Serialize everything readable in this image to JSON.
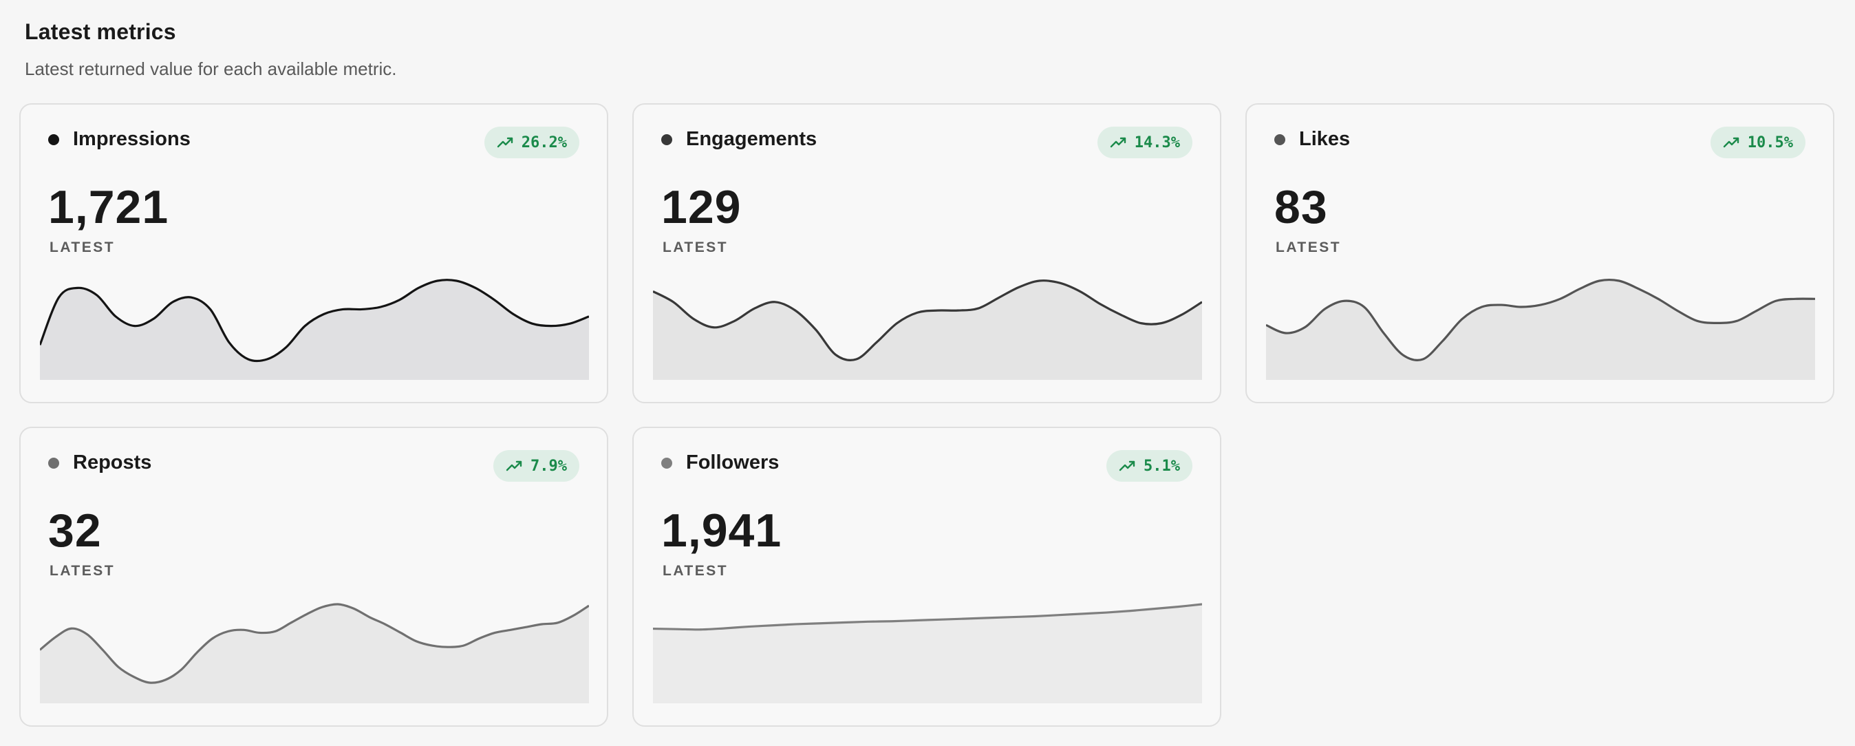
{
  "header": {
    "title": "Latest metrics",
    "subtitle": "Latest returned value for each available metric."
  },
  "metrics": [
    {
      "name": "Impressions",
      "value": "1,721",
      "caption": "LATEST",
      "change": "26.2%",
      "color": "#141414",
      "fill": "#e0e0e2",
      "series": [
        49,
        69,
        73,
        70,
        61,
        57,
        60,
        67,
        69,
        64,
        50,
        43,
        43,
        48,
        57,
        62,
        64,
        64,
        65,
        68,
        73,
        76,
        76,
        73,
        68,
        62,
        58,
        57,
        58,
        61
      ]
    },
    {
      "name": "Engagements",
      "value": "129",
      "caption": "LATEST",
      "change": "14.3%",
      "color": "#383838",
      "fill": "#e4e4e4",
      "series": [
        63,
        58,
        50,
        46,
        49,
        55,
        58,
        54,
        45,
        33,
        31,
        39,
        48,
        53,
        54,
        54,
        55,
        60,
        65,
        68,
        67,
        63,
        57,
        52,
        48,
        48,
        52,
        58
      ]
    },
    {
      "name": "Likes",
      "value": "83",
      "caption": "LATEST",
      "change": "10.5%",
      "color": "#555555",
      "fill": "#e5e5e5",
      "series": [
        48,
        44,
        47,
        56,
        60,
        57,
        44,
        33,
        31,
        40,
        51,
        57,
        58,
        57,
        58,
        61,
        66,
        70,
        70,
        66,
        61,
        55,
        50,
        49,
        50,
        55,
        60,
        61,
        61
      ]
    },
    {
      "name": "Reposts",
      "value": "32",
      "caption": "LATEST",
      "change": "7.9%",
      "color": "#707070",
      "fill": "#e8e8e8",
      "series": [
        61,
        70,
        76,
        72,
        61,
        49,
        42,
        38,
        40,
        47,
        59,
        69,
        74,
        75,
        73,
        74,
        80,
        86,
        91,
        93,
        90,
        84,
        79,
        73,
        67,
        64,
        63,
        64,
        69,
        73,
        75,
        77,
        79,
        80,
        85,
        92
      ]
    },
    {
      "name": "Followers",
      "value": "1,941",
      "caption": "LATEST",
      "change": "5.1%",
      "color": "#7f7f7f",
      "fill": "#ebebeb",
      "series": [
        1882,
        1881,
        1880,
        1883,
        1887,
        1890,
        1893,
        1895,
        1897,
        1899,
        1900,
        1902,
        1904,
        1906,
        1908,
        1910,
        1912,
        1915,
        1918,
        1921,
        1925,
        1930,
        1935,
        1941
      ]
    }
  ]
}
